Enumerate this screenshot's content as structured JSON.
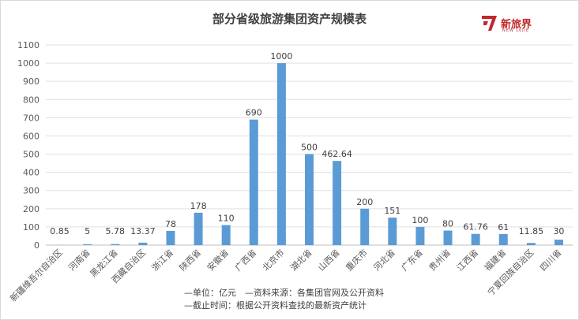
{
  "chart_data": {
    "type": "bar",
    "title": "部分省级旅游集团资产规模表",
    "categories": [
      "新疆维吾尔自治区",
      "河南省",
      "黑龙江省",
      "西藏自治区",
      "浙江省",
      "陕西省",
      "安徽省",
      "广西省",
      "北京市",
      "湖北省",
      "山西省",
      "重庆市",
      "河北省",
      "广东省",
      "贵州省",
      "江西省",
      "福建省",
      "宁夏回族自治区",
      "四川省"
    ],
    "values": [
      0.85,
      5,
      5.78,
      13.37,
      78,
      178,
      110,
      690,
      1000,
      500,
      462.64,
      200,
      151,
      100,
      80,
      61.76,
      61,
      11.85,
      30
    ],
    "value_labels": [
      "0.85",
      "5",
      "5.78",
      "13.37",
      "78",
      "178",
      "110",
      "690",
      "1000",
      "500",
      "462.64",
      "200",
      "151",
      "100",
      "80",
      "61.76",
      "61",
      "11.85",
      "30"
    ],
    "ylim": [
      0,
      1100
    ],
    "yticks": [
      "0",
      "100",
      "200",
      "300",
      "400",
      "500",
      "600",
      "700",
      "800",
      "900",
      "1000",
      "1100"
    ],
    "grid": true,
    "legend": "none",
    "bar_color": "#5b9bd5"
  },
  "logo": {
    "text_cn": "新旅界",
    "text_en": "NEW LVJIE",
    "color": "#c0282d"
  },
  "notes": [
    "—单位：亿元　—资料来源：各集团官网及公开资料",
    "—截止时间：根据公开资料查找的最新资产统计"
  ]
}
